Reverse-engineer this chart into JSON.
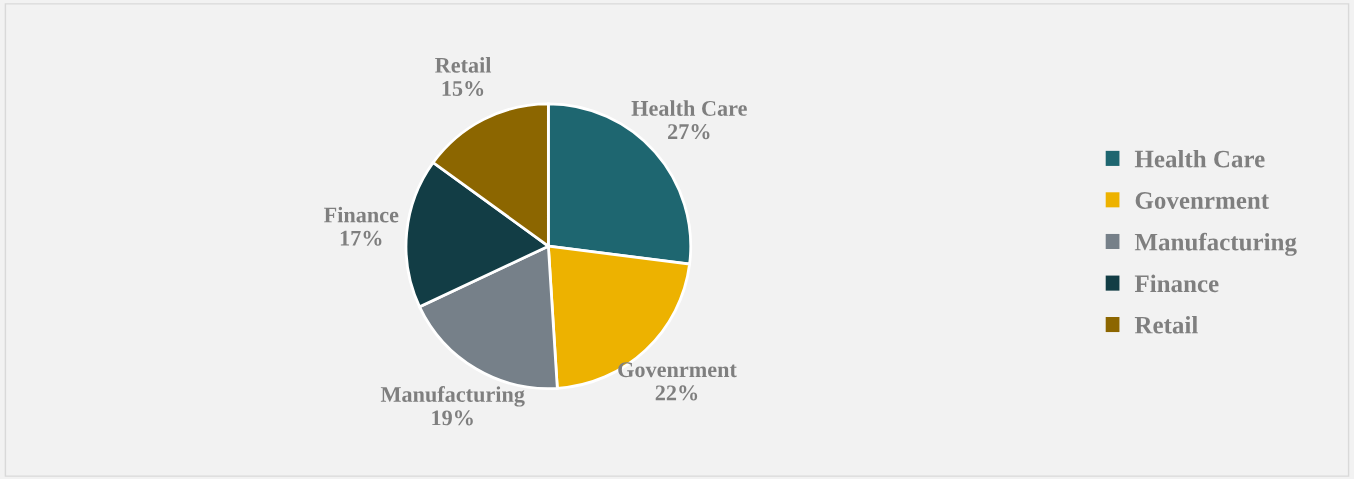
{
  "chart_data": {
    "type": "pie",
    "categories": [
      "Health Care",
      "Govenrment",
      "Manufacturing",
      "Finance",
      "Retail"
    ],
    "values": [
      27,
      22,
      19,
      17,
      15
    ],
    "colors": [
      "#1e6670",
      "#edb200",
      "#768089",
      "#123d45",
      "#8c6600"
    ],
    "value_labels": [
      "27%",
      "22%",
      "19%",
      "17%",
      "15%"
    ],
    "legend": "right"
  }
}
